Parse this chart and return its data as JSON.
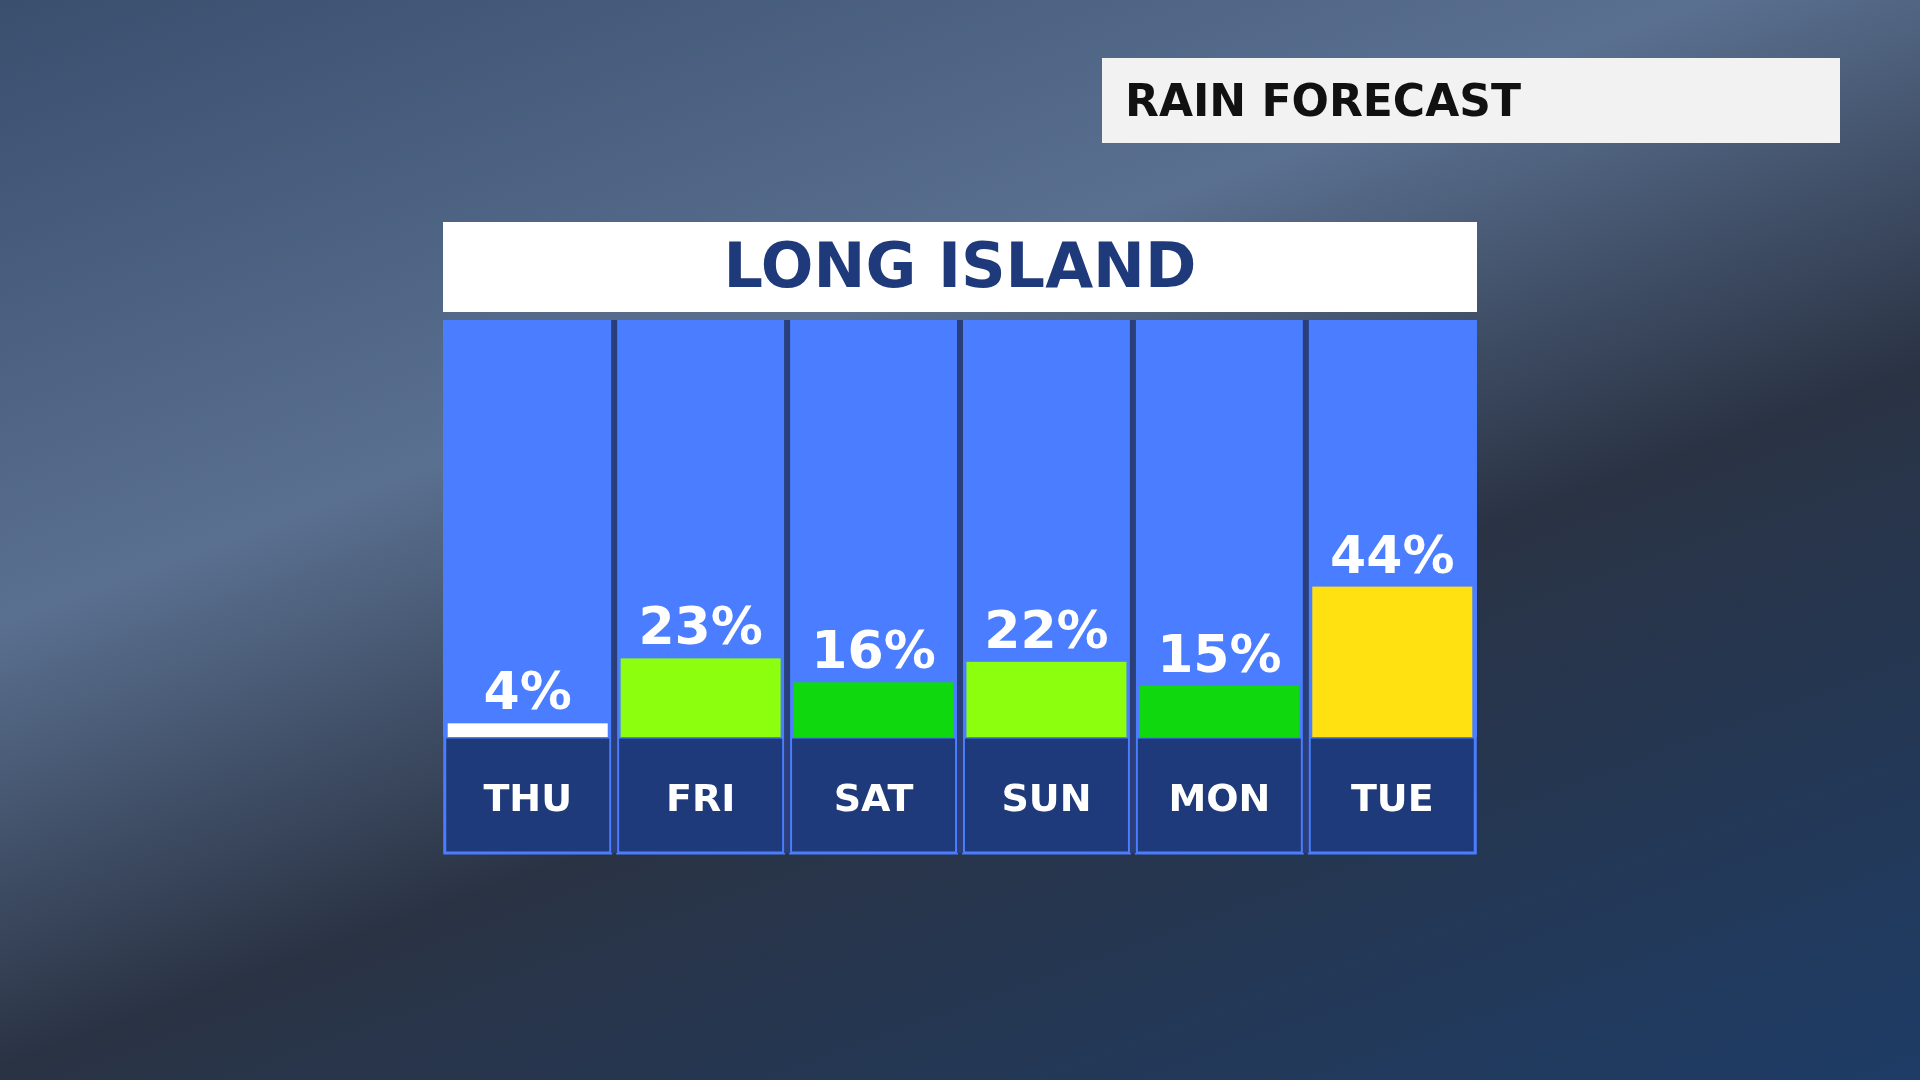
{
  "chart_data": {
    "type": "bar",
    "title": "RAIN FORECAST",
    "subtitle": "LONG ISLAND",
    "categories": [
      "THU",
      "FRI",
      "SAT",
      "SUN",
      "MON",
      "TUE"
    ],
    "values": [
      4,
      23,
      16,
      22,
      15,
      44
    ],
    "colors": [
      "#ffffff",
      "#8cff0f",
      "#0fd80f",
      "#8cff0f",
      "#0fd80f",
      "#ffe010"
    ],
    "ylim": [
      0,
      122
    ],
    "value_labels": [
      "4%",
      "23%",
      "16%",
      "22%",
      "15%",
      "44%"
    ]
  }
}
